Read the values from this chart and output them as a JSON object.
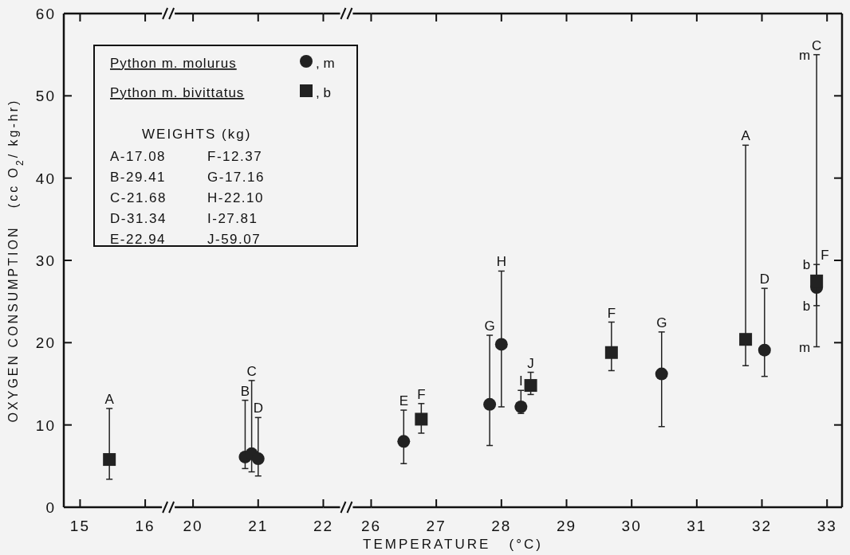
{
  "chart_data": [
    {
      "type": "scatter",
      "ylabel": "OXYGEN CONSUMPTION   (cc O$_{2}$/ kg-hr)",
      "xlim": [
        14.75,
        16
      ],
      "xticks": [
        15,
        16
      ],
      "ylim": [
        0,
        60
      ],
      "yticks": [
        0,
        10,
        20,
        30,
        40,
        50,
        60
      ],
      "legend": "top right",
      "series": [
        {
          "name": "Python m. molurus",
          "color": "#222222",
          "marker": "circle"
        },
        {
          "name": "Python m. bivittatus",
          "color": "#222222",
          "marker": "square",
          "x": [
            15.45
          ],
          "values": [
            5.8
          ],
          "errors": [
            [
              3.4,
              12.0
            ]
          ]
        }
      ],
      "annotations": [
        ", m",
        ", b",
        "WEIGHTS (kg)",
        "A-17.08",
        "B-29.41",
        "C-21.68",
        "D-31.34",
        "E-22.94",
        "F-12.37",
        "G-17.16",
        "H-22.10",
        "I-27.81",
        "J-59.07",
        {
          "text": "A",
          "x": 15.45,
          "y": 12.0
        }
      ]
    },
    {
      "type": "scatter",
      "xlim": [
        20,
        22
      ],
      "xticks": [
        20,
        21,
        22
      ],
      "ylim": [
        0,
        60
      ],
      "tick_labels": "x",
      "series": [
        {
          "color": "#222222",
          "marker": "circle",
          "x": [
            20.8,
            20.9,
            21.0
          ],
          "values": [
            6.1,
            6.5,
            5.9
          ],
          "errors": [
            [
              4.7,
              13.0
            ],
            [
              4.3,
              15.4
            ],
            [
              3.8,
              10.9
            ]
          ]
        }
      ],
      "annotations": [
        {
          "text": "B",
          "x": 20.8,
          "y": 13.0
        },
        {
          "text": "C",
          "x": 20.9,
          "y": 15.4
        },
        {
          "text": "D",
          "x": 21.0,
          "y": 10.9
        }
      ]
    },
    {
      "type": "scatter",
      "xlabel": "TEMPERATURE   (°C)",
      "xlim": [
        26,
        33.23
      ],
      "xticks": [
        26,
        27,
        28,
        29,
        30,
        31,
        32,
        33
      ],
      "ylim": [
        0,
        60
      ],
      "yticks": [
        0,
        10,
        20,
        30,
        40,
        50,
        60
      ],
      "tick_labels": "x",
      "series": [
        {
          "color": "#222222",
          "marker": "circle",
          "x": [
            26.5,
            27.82,
            28.0,
            28.3,
            30.46,
            32.04,
            32.84
          ],
          "values": [
            8.0,
            12.5,
            19.8,
            12.2,
            16.2,
            19.1,
            26.7
          ],
          "errors": [
            [
              5.3,
              11.8
            ],
            [
              7.5,
              20.9
            ],
            [
              12.2,
              28.7
            ],
            [
              11.4,
              14.2
            ],
            [
              9.8,
              21.3
            ],
            [
              15.9,
              26.6
            ],
            [
              19.5,
              55
            ]
          ]
        },
        {
          "color": "#222222",
          "marker": "square",
          "x": [
            26.77,
            28.45,
            29.69,
            31.75,
            32.84
          ],
          "values": [
            10.7,
            14.8,
            18.8,
            20.4,
            27.5
          ],
          "errors": [
            [
              9.0,
              12.6
            ],
            [
              13.7,
              16.4
            ],
            [
              16.6,
              22.5
            ],
            [
              17.2,
              44.0
            ],
            [
              24.5,
              29.5
            ]
          ]
        }
      ],
      "annotations": [
        {
          "text": "E",
          "x": 26.5,
          "y": 11.8
        },
        {
          "text": "F",
          "x": 26.77,
          "y": 12.6
        },
        {
          "text": "G",
          "x": 27.82,
          "y": 20.9
        },
        {
          "text": "H",
          "x": 28.0,
          "y": 28.7
        },
        {
          "text": "I",
          "x": 28.3,
          "y": 14.2
        },
        {
          "text": "J",
          "x": 28.45,
          "y": 16.4
        },
        {
          "text": "F",
          "x": 29.69,
          "y": 22.5
        },
        {
          "text": "G",
          "x": 30.46,
          "y": 21.3
        },
        {
          "text": "A",
          "x": 31.75,
          "y": 44.0
        },
        {
          "text": "D",
          "x": 32.04,
          "y": 26.6
        },
        {
          "text": "C",
          "x": 32.84,
          "y": 55
        },
        {
          "text": "m",
          "x": 32.84,
          "y": 55
        },
        {
          "text": "F",
          "x": 32.84,
          "y": 29.5
        },
        {
          "text": "b",
          "x": 32.84,
          "y": 29.5
        },
        {
          "text": "b",
          "x": 32.84,
          "y": 24.5
        },
        {
          "text": "m",
          "x": 32.84,
          "y": 19.5
        }
      ]
    }
  ]
}
